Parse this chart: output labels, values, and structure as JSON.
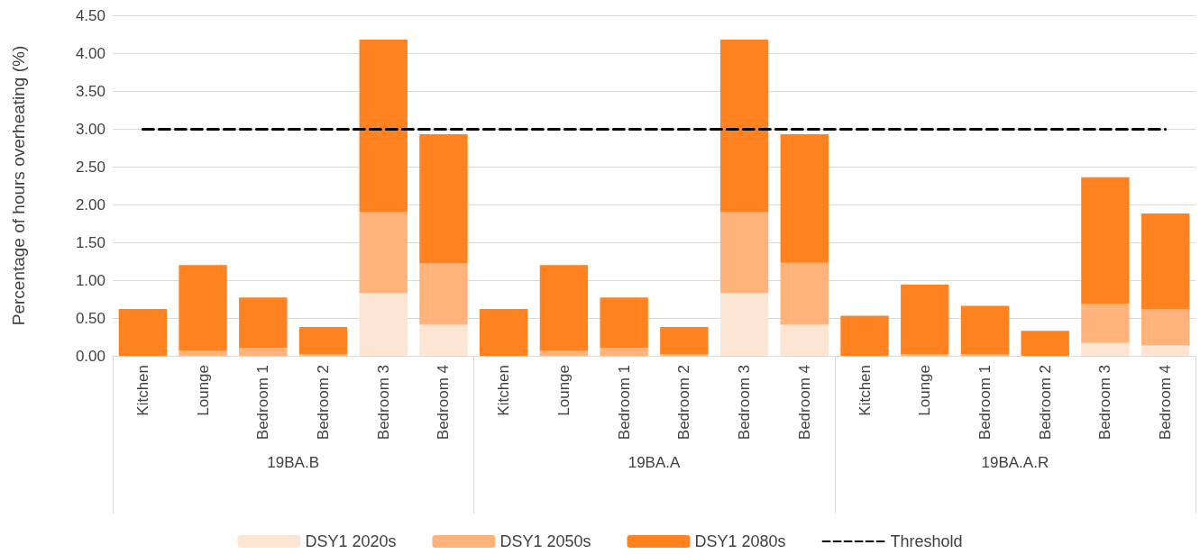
{
  "chart_data": {
    "type": "bar",
    "stacked": true,
    "ylabel": "Percentage of hours overheating (%)",
    "categories": [
      "Kitchen",
      "Lounge",
      "Bedroom 1",
      "Bedroom 2",
      "Bedroom 3",
      "Bedroom 4",
      "Kitchen",
      "Lounge",
      "Bedroom 1",
      "Bedroom 2",
      "Bedroom 3",
      "Bedroom 4",
      "Kitchen",
      "Lounge",
      "Bedroom 1",
      "Bedroom 2",
      "Bedroom 3",
      "Bedroom 4"
    ],
    "annotations": [
      "19BA.B",
      "19BA.A",
      "19BA.A.R"
    ],
    "series": [
      {
        "name": "DSY1 2020s",
        "color": "#fde5d3",
        "values": [
          0,
          0,
          0,
          0,
          0.83,
          0.41,
          0,
          0,
          0,
          0,
          0.83,
          0.41,
          0,
          0,
          0,
          0,
          0.17,
          0.14
        ]
      },
      {
        "name": "DSY1 2050s",
        "color": "#ffb27a",
        "values": [
          0,
          0.07,
          0.1,
          0.02,
          1.07,
          0.81,
          0,
          0.07,
          0.1,
          0.02,
          1.07,
          0.82,
          0,
          0.02,
          0.02,
          0,
          0.52,
          0.48
        ]
      },
      {
        "name": "DSY1 2080s",
        "color": "#ff8221",
        "values": [
          0.62,
          1.13,
          0.67,
          0.36,
          2.28,
          1.71,
          0.62,
          1.13,
          0.67,
          0.36,
          2.28,
          1.7,
          0.53,
          0.92,
          0.64,
          0.33,
          1.67,
          1.26
        ]
      }
    ],
    "ref_lines": [
      {
        "axis": "y",
        "value": 3,
        "label": "Threshold",
        "color": "#000000",
        "line_style": "dashed"
      }
    ],
    "ylim": [
      0,
      4.5
    ],
    "yticks": [
      {
        "value": 0,
        "label": "0.00"
      },
      {
        "value": 0.5,
        "label": "0.50"
      },
      {
        "value": 1,
        "label": "1.00"
      },
      {
        "value": 1.5,
        "label": "1.50"
      },
      {
        "value": 2,
        "label": "2.00"
      },
      {
        "value": 2.5,
        "label": "2.50"
      },
      {
        "value": 3,
        "label": "3.00"
      },
      {
        "value": 3.5,
        "label": "3.50"
      },
      {
        "value": 4,
        "label": "4.00"
      },
      {
        "value": 4.5,
        "label": "4.50"
      }
    ],
    "grid": "y",
    "legend": "bottom"
  }
}
